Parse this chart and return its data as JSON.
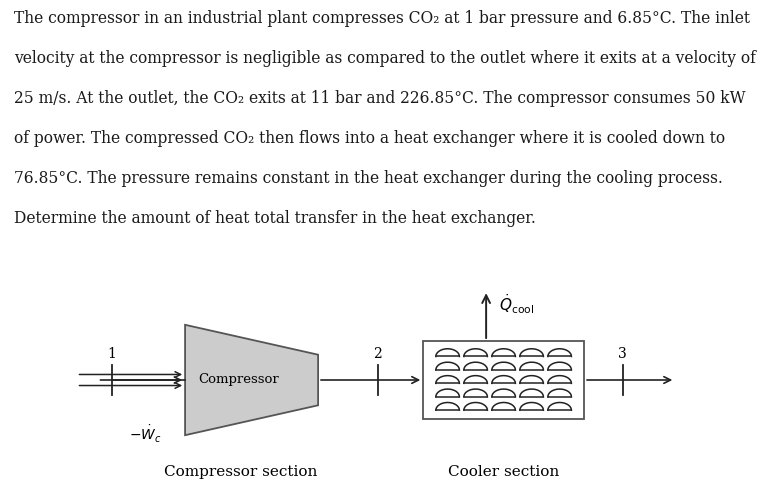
{
  "background_color": "#ffffff",
  "text_color": "#1a1a1a",
  "line1": "The compressor in an industrial plant compresses CO₂ at 1 bar pressure and 6.85°C. The inlet",
  "line2": "velocity at the compressor is negligible as compared to the outlet where it exits at a velocity of",
  "line3": "25 m/s. At the outlet, the CO₂ exits at 11 bar and 226.85°C. The compressor consumes 50 kW",
  "line4": "of power. The compressed CO₂ then flows into a heat exchanger where it is cooled down to",
  "line5": "76.85°C. The pressure remains constant in the heat exchanger during the cooling process.",
  "line6": "Determine the amount of heat total transfer in the heat exchanger.",
  "label_compressor_section": "Compressor section",
  "label_cooler_section": "Cooler section",
  "label_compressor": "Compressor",
  "label_1": "1",
  "label_2": "2",
  "label_3": "3",
  "font_size_text": 11.2,
  "font_size_diagram": 10,
  "edge_color": "#555555",
  "face_color_comp": "#cccccc",
  "coil_color": "#222222",
  "arrow_color": "#222222"
}
